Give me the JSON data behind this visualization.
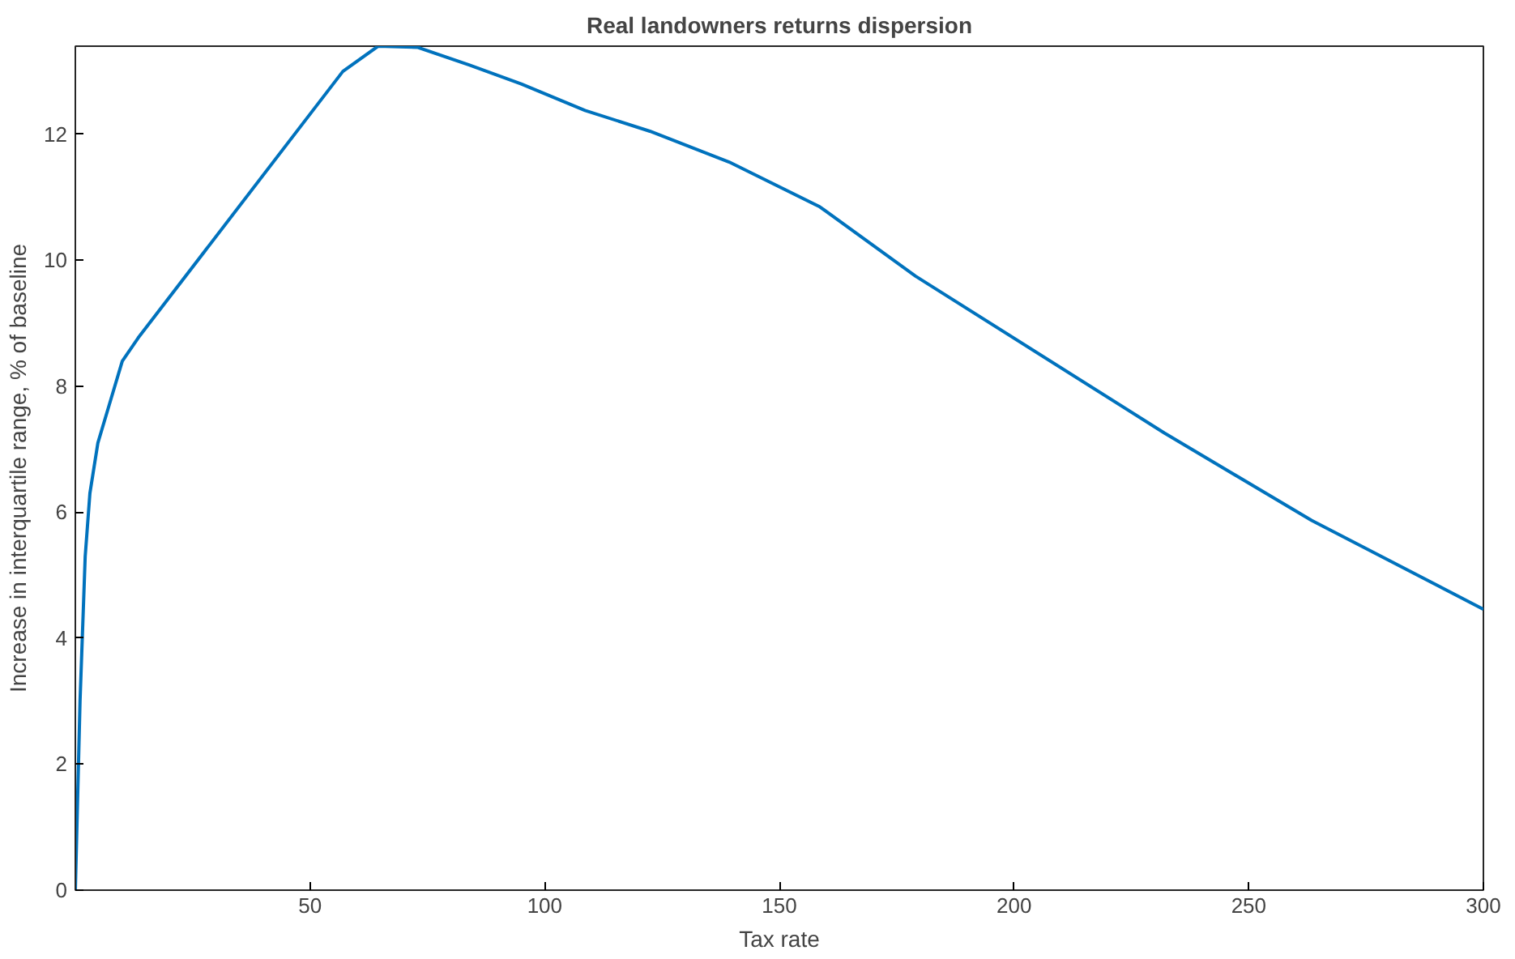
{
  "chart_data": {
    "type": "line",
    "title": "Real landowners returns dispersion",
    "xlabel": "Tax rate",
    "ylabel": "Increase in interquartile range, % of baseline",
    "x": [
      0,
      1,
      2.1,
      3.1,
      4.8,
      7.2,
      10,
      13.4,
      57,
      64.5,
      73,
      84,
      95,
      108.6,
      122.4,
      139.3,
      158.6,
      179,
      232,
      263.4,
      300
    ],
    "series": [
      {
        "color": "#0072bd",
        "values": [
          0,
          3.0,
          5.3,
          6.3,
          7.1,
          7.7,
          8.4,
          8.77,
          13.0,
          13.4,
          13.38,
          13.1,
          12.8,
          12.38,
          12.05,
          11.56,
          10.85,
          9.75,
          7.26,
          5.87,
          4.46
        ]
      }
    ],
    "xlim": [
      0,
      300
    ],
    "ylim": [
      0,
      13.4
    ],
    "xticks": [
      50,
      100,
      150,
      200,
      250,
      300
    ],
    "yticks": [
      0,
      2,
      4,
      6,
      8,
      10,
      12
    ],
    "grid": false,
    "line_style": "solid",
    "marker": "none"
  }
}
